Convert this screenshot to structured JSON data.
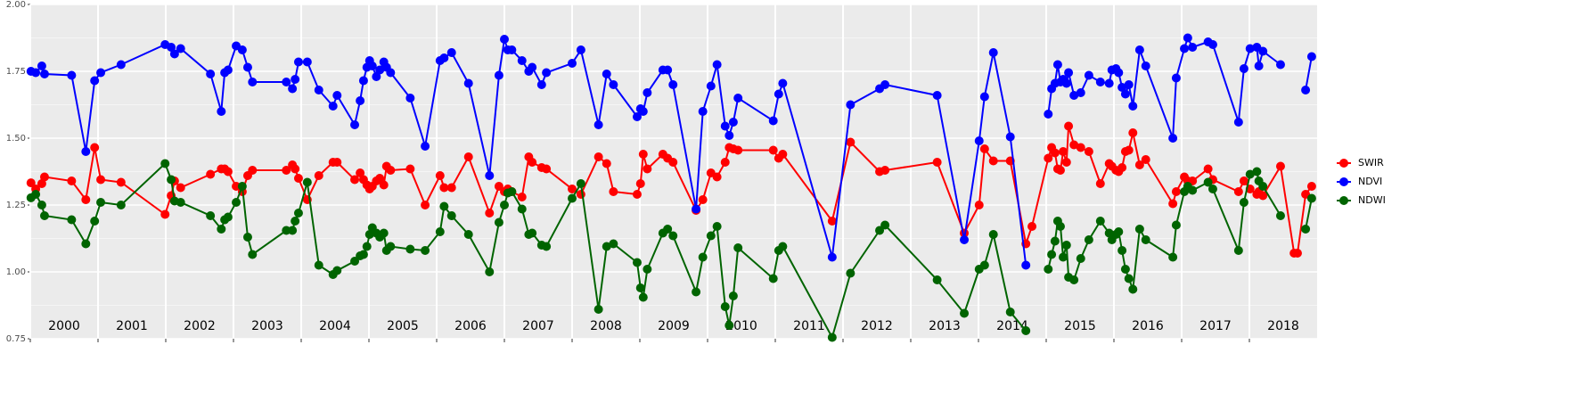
{
  "chart_data": {
    "type": "line",
    "x": [
      2000.01,
      2000.08,
      2000.17,
      2000.21,
      2000.61,
      2000.82,
      2000.95,
      2001.04,
      2001.34,
      2001.99,
      2002.08,
      2002.13,
      2002.22,
      2002.66,
      2002.82,
      2002.87,
      2002.92,
      2003.04,
      2003.13,
      2003.21,
      2003.28,
      2003.78,
      2003.87,
      2003.91,
      2003.96,
      2004.09,
      2004.26,
      2004.47,
      2004.53,
      2004.79,
      2004.87,
      2004.92,
      2004.97,
      2005.01,
      2005.05,
      2005.11,
      2005.16,
      2005.22,
      2005.26,
      2005.32,
      2005.61,
      2005.83,
      2006.05,
      2006.11,
      2006.22,
      2006.47,
      2006.78,
      2006.92,
      2007.0,
      2007.05,
      2007.11,
      2007.26,
      2007.36,
      2007.41,
      2007.55,
      2007.62,
      2008.0,
      2008.13,
      2008.39,
      2008.51,
      2008.61,
      2008.96,
      2009.01,
      2009.05,
      2009.11,
      2009.34,
      2009.41,
      2009.49,
      2009.83,
      2009.93,
      2010.05,
      2010.14,
      2010.26,
      2010.32,
      2010.38,
      2010.45,
      2010.97,
      2011.05,
      2011.11,
      2011.84,
      2012.11,
      2012.54,
      2012.62,
      2013.39,
      2013.79,
      2014.01,
      2014.09,
      2014.22,
      2014.47,
      2014.7,
      2014.79,
      2015.03,
      2015.08,
      2015.13,
      2015.17,
      2015.21,
      2015.25,
      2015.3,
      2015.33,
      2015.41,
      2015.51,
      2015.63,
      2015.8,
      2015.93,
      2015.97,
      2016.03,
      2016.07,
      2016.12,
      2016.17,
      2016.22,
      2016.28,
      2016.38,
      2016.47,
      2016.87,
      2016.92,
      2017.04,
      2017.09,
      2017.16,
      2017.39,
      2017.46,
      2017.84,
      2017.92,
      2018.01,
      2018.11,
      2018.14,
      2018.2,
      2018.46,
      2018.66,
      2018.71,
      2018.83,
      2018.92
    ],
    "series": [
      {
        "name": "SWIR",
        "color": "#ff0000",
        "values": [
          1.333,
          1.31,
          1.33,
          1.355,
          1.34,
          1.27,
          1.465,
          1.345,
          1.335,
          1.215,
          1.285,
          1.34,
          1.315,
          1.365,
          1.385,
          1.385,
          1.375,
          1.32,
          1.3,
          1.36,
          1.38,
          1.38,
          1.4,
          1.385,
          1.35,
          1.27,
          1.36,
          1.41,
          1.41,
          1.345,
          1.37,
          1.345,
          1.325,
          1.31,
          1.32,
          1.34,
          1.35,
          1.325,
          1.395,
          1.38,
          1.385,
          1.25,
          1.36,
          1.315,
          1.315,
          1.43,
          1.22,
          1.32,
          1.3,
          1.31,
          1.3,
          1.28,
          1.43,
          1.41,
          1.39,
          1.385,
          1.31,
          1.29,
          1.43,
          1.405,
          1.3,
          1.29,
          1.33,
          1.44,
          1.385,
          1.44,
          1.425,
          1.41,
          1.23,
          1.27,
          1.37,
          1.355,
          1.41,
          1.465,
          1.46,
          1.455,
          1.455,
          1.425,
          1.44,
          1.19,
          1.485,
          1.375,
          1.38,
          1.41,
          1.145,
          1.25,
          1.46,
          1.415,
          1.415,
          1.105,
          1.17,
          1.425,
          1.465,
          1.445,
          1.385,
          1.38,
          1.45,
          1.41,
          1.545,
          1.475,
          1.465,
          1.45,
          1.33,
          1.405,
          1.395,
          1.38,
          1.375,
          1.39,
          1.45,
          1.455,
          1.52,
          1.4,
          1.42,
          1.255,
          1.3,
          1.355,
          1.34,
          1.34,
          1.385,
          1.345,
          1.3,
          1.34,
          1.31,
          1.29,
          1.3,
          1.285,
          1.395,
          1.07,
          1.07,
          1.29,
          1.32
        ]
      },
      {
        "name": "NDVI",
        "color": "#0000ff",
        "values": [
          1.75,
          1.745,
          1.77,
          1.74,
          1.735,
          1.45,
          1.715,
          1.745,
          1.775,
          1.85,
          1.84,
          1.815,
          1.835,
          1.74,
          1.6,
          1.745,
          1.755,
          1.845,
          1.83,
          1.765,
          1.71,
          1.71,
          1.685,
          1.72,
          1.785,
          1.785,
          1.68,
          1.62,
          1.66,
          1.55,
          1.64,
          1.715,
          1.765,
          1.79,
          1.77,
          1.73,
          1.755,
          1.785,
          1.765,
          1.745,
          1.65,
          1.47,
          1.79,
          1.8,
          1.82,
          1.705,
          1.36,
          1.735,
          1.87,
          1.83,
          1.83,
          1.79,
          1.75,
          1.765,
          1.7,
          1.745,
          1.78,
          1.83,
          1.55,
          1.74,
          1.7,
          1.58,
          1.61,
          1.6,
          1.67,
          1.755,
          1.755,
          1.7,
          1.235,
          1.6,
          1.695,
          1.775,
          1.545,
          1.51,
          1.56,
          1.65,
          1.565,
          1.665,
          1.705,
          1.055,
          1.625,
          1.685,
          1.7,
          1.66,
          1.12,
          1.49,
          1.655,
          1.82,
          1.505,
          1.025,
          null,
          1.59,
          1.685,
          1.705,
          1.775,
          1.71,
          1.72,
          1.705,
          1.745,
          1.66,
          1.67,
          1.735,
          1.71,
          1.705,
          1.755,
          1.76,
          1.745,
          1.69,
          1.665,
          1.7,
          1.62,
          1.83,
          1.77,
          1.5,
          1.725,
          1.835,
          1.875,
          1.84,
          1.86,
          1.85,
          1.56,
          1.76,
          1.835,
          1.84,
          1.77,
          1.825,
          1.775,
          null,
          null,
          1.68,
          1.805
        ]
      },
      {
        "name": "NDWI",
        "color": "#006400",
        "values": [
          1.277,
          1.29,
          1.25,
          1.21,
          1.195,
          1.105,
          1.19,
          1.26,
          1.25,
          1.405,
          1.345,
          1.265,
          1.26,
          1.21,
          1.16,
          1.195,
          1.205,
          1.26,
          1.32,
          1.13,
          1.065,
          1.155,
          1.155,
          1.19,
          1.22,
          1.335,
          1.025,
          0.99,
          1.005,
          1.04,
          1.06,
          1.065,
          1.095,
          1.14,
          1.165,
          1.145,
          1.13,
          1.145,
          1.08,
          1.095,
          1.085,
          1.08,
          1.15,
          1.245,
          1.21,
          1.14,
          1.0,
          1.185,
          1.25,
          1.295,
          1.3,
          1.235,
          1.14,
          1.145,
          1.1,
          1.095,
          1.275,
          1.33,
          0.86,
          1.095,
          1.105,
          1.035,
          0.94,
          0.905,
          1.01,
          1.145,
          1.16,
          1.135,
          0.925,
          1.055,
          1.135,
          1.17,
          0.87,
          0.8,
          0.91,
          1.09,
          0.975,
          1.08,
          1.095,
          0.755,
          0.995,
          1.155,
          1.175,
          0.97,
          0.845,
          1.01,
          1.025,
          1.14,
          0.85,
          0.78,
          null,
          1.01,
          1.065,
          1.115,
          1.19,
          1.17,
          1.055,
          1.1,
          0.98,
          0.97,
          1.05,
          1.12,
          1.19,
          1.145,
          1.12,
          1.14,
          1.15,
          1.08,
          1.01,
          0.975,
          0.935,
          1.16,
          1.12,
          1.055,
          1.175,
          1.3,
          1.32,
          1.305,
          1.335,
          1.31,
          1.08,
          1.26,
          1.365,
          1.375,
          1.34,
          1.32,
          1.21,
          null,
          null,
          1.16,
          1.275
        ]
      }
    ],
    "xlim": [
      2000,
      2019
    ],
    "xticks": [
      2000,
      2001,
      2002,
      2003,
      2004,
      2005,
      2006,
      2007,
      2008,
      2009,
      2010,
      2011,
      2012,
      2013,
      2014,
      2015,
      2016,
      2017,
      2018
    ],
    "ylim": [
      0.75,
      2
    ],
    "yticks": [
      {
        "value": 0.75,
        "label": "0.75"
      },
      {
        "value": 1,
        "label": "1.00"
      },
      {
        "value": 1.25,
        "label": "1.25"
      },
      {
        "value": 1.5,
        "label": "1.50"
      },
      {
        "value": 1.75,
        "label": "1.75"
      },
      {
        "value": 2,
        "label": "2.00"
      }
    ],
    "grid": true
  }
}
